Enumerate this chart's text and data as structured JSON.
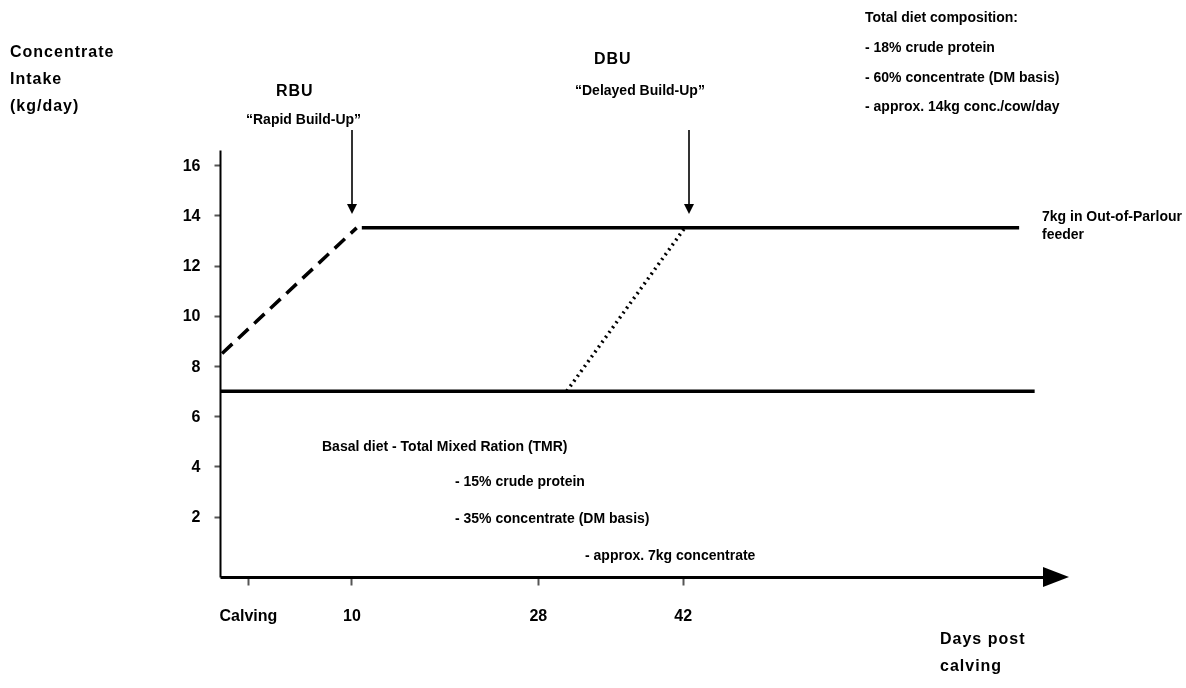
{
  "chart_data": {
    "type": "line",
    "xlabel": "Days post calving",
    "ylabel": "Concentrate Intake (kg/day)",
    "xlim": [
      -2.7,
      77
    ],
    "ylim": [
      -0.4,
      16.6
    ],
    "xticks": [
      {
        "value": 0,
        "label": "Calving"
      },
      10,
      28,
      42
    ],
    "yticks": [
      2,
      4,
      6,
      8,
      10,
      12,
      14,
      16
    ],
    "grid": false,
    "marker": "none",
    "series": [
      {
        "color": "#000000",
        "line_style": "dashed",
        "x": [
          -2.5,
          10.5
        ],
        "values": [
          8.5,
          13.5
        ]
      },
      {
        "color": "#000000",
        "line_style": "solid",
        "x": [
          11,
          74.5
        ],
        "values": [
          13.5,
          13.5
        ]
      },
      {
        "color": "#000000",
        "line_style": "dotted",
        "x": [
          30.8,
          42.2
        ],
        "values": [
          7,
          13.5
        ]
      },
      {
        "color": "#000000",
        "line_style": "solid",
        "x": [
          -2.7,
          76
        ],
        "values": [
          7,
          7
        ]
      }
    ],
    "annotations": [
      "RBU",
      "“Rapid Build-Up”",
      "DBU",
      "“Delayed Build-Up”",
      "Total diet composition:",
      "- 18% crude protein",
      "- 60% concentrate (DM basis)",
      "- approx. 14kg conc./cow/day",
      "7kg in Out-of-Parlour feeder",
      "Basal diet - Total Mixed Ration (TMR)",
      "- 15% crude protein",
      "- 35% concentrate (DM basis)",
      "- approx. 7kg concentrate"
    ]
  }
}
